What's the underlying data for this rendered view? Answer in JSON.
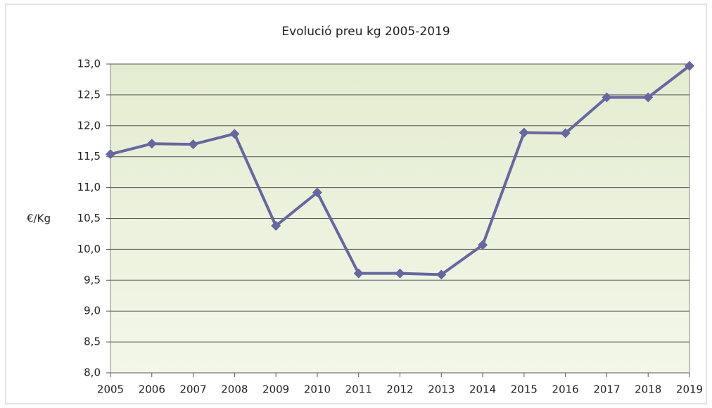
{
  "chart_data": {
    "type": "line",
    "title": "Evolució preu kg 2005-2019",
    "y_label": "€/Kg",
    "categories": [
      "2005",
      "2006",
      "2007",
      "2008",
      "2009",
      "2010",
      "2011",
      "2012",
      "2013",
      "2014",
      "2015",
      "2016",
      "2017",
      "2018",
      "2019"
    ],
    "series": [
      {
        "name": "preu",
        "color": "#6666a3",
        "values": [
          11.54,
          11.71,
          11.7,
          11.87,
          10.38,
          10.92,
          9.61,
          9.61,
          9.59,
          10.07,
          11.89,
          11.88,
          12.46,
          12.46,
          12.97
        ]
      }
    ],
    "ylim": [
      8,
      13
    ],
    "yticks": [
      {
        "value": 8,
        "label": "8,0"
      },
      {
        "value": 8.5,
        "label": "8,5"
      },
      {
        "value": 9,
        "label": "9,0"
      },
      {
        "value": 9.5,
        "label": "9,5"
      },
      {
        "value": 10,
        "label": "10,0"
      },
      {
        "value": 10.5,
        "label": "10,5"
      },
      {
        "value": 11,
        "label": "11,0"
      },
      {
        "value": 11.5,
        "label": "11,5"
      },
      {
        "value": 12,
        "label": "12,0"
      },
      {
        "value": 12.5,
        "label": "12,5"
      },
      {
        "value": 13,
        "label": "13,0"
      }
    ],
    "grid": true
  }
}
